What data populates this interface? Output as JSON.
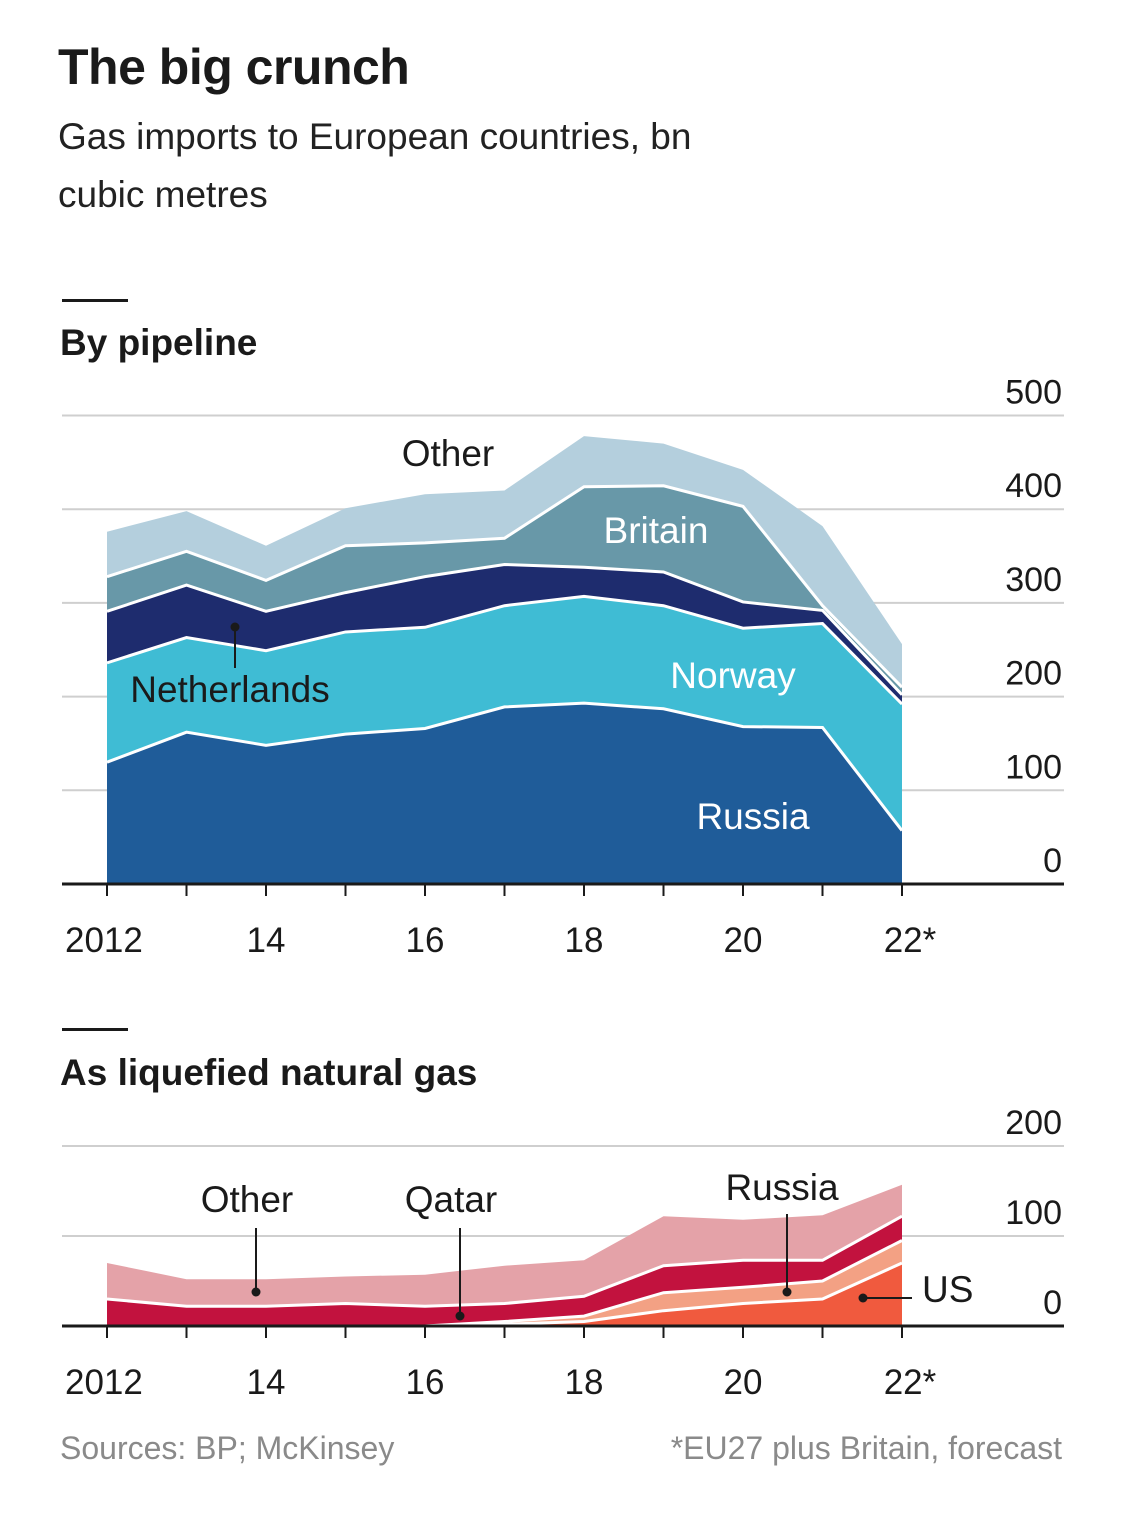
{
  "title": "The big crunch",
  "subtitle": "Gas imports to European countries, bn cubic metres",
  "source": "Sources: BP; McKinsey",
  "footnote": "*EU27 plus Britain, forecast",
  "colors": {
    "russia_pipe": "#1f5c99",
    "norway": "#3fbcd4",
    "netherlands": "#1e2c6e",
    "britain": "#6898a8",
    "other_pipe": "#b4cfdd",
    "us": "#f05a3e",
    "russia_lng": "#f3a184",
    "qatar": "#c2123e",
    "other_lng": "#e4a2a8",
    "grid": "#cfcfcf",
    "axis": "#1a1a1a"
  },
  "chart_data": [
    {
      "type": "area",
      "title": "By pipeline",
      "x": [
        2012,
        2013,
        2014,
        2015,
        2016,
        2017,
        2018,
        2019,
        2020,
        2021,
        2022
      ],
      "xticklabels": [
        "2012",
        "14",
        "16",
        "18",
        "20",
        "22*"
      ],
      "xtickvalues": [
        2012,
        2014,
        2016,
        2018,
        2020,
        2022
      ],
      "ylim": [
        0,
        500
      ],
      "yticks": [
        0,
        100,
        200,
        300,
        400,
        500
      ],
      "stacked": true,
      "series": [
        {
          "name": "Russia",
          "values": [
            130,
            162,
            148,
            160,
            166,
            189,
            193,
            187,
            168,
            167,
            57
          ],
          "color": "#1f5c99",
          "label_color": "#ffffff"
        },
        {
          "name": "Norway",
          "values": [
            106,
            101,
            101,
            109,
            108,
            108,
            114,
            110,
            105,
            111,
            135
          ],
          "color": "#3fbcd4",
          "label_color": "#ffffff"
        },
        {
          "name": "Netherlands",
          "values": [
            55,
            56,
            42,
            42,
            54,
            44,
            31,
            36,
            28,
            14,
            10
          ],
          "color": "#1e2c6e",
          "label_color": "#1a1a1a"
        },
        {
          "name": "Britain",
          "values": [
            37,
            36,
            33,
            50,
            36,
            28,
            86,
            92,
            102,
            5,
            8
          ],
          "color": "#6898a8",
          "label_color": "#ffffff"
        },
        {
          "name": "Other",
          "values": [
            48,
            43,
            37,
            40,
            52,
            51,
            54,
            45,
            39,
            85,
            46
          ],
          "color": "#b4cfdd",
          "label_color": "#1a1a1a"
        }
      ]
    },
    {
      "type": "area",
      "title": "As liquefied natural gas",
      "x": [
        2012,
        2013,
        2014,
        2015,
        2016,
        2017,
        2018,
        2019,
        2020,
        2021,
        2022
      ],
      "xticklabels": [
        "2012",
        "14",
        "16",
        "18",
        "20",
        "22*"
      ],
      "xtickvalues": [
        2012,
        2014,
        2016,
        2018,
        2020,
        2022
      ],
      "ylim": [
        0,
        200
      ],
      "yticks": [
        0,
        100,
        200
      ],
      "stacked": true,
      "series": [
        {
          "name": "US",
          "values": [
            0,
            0,
            0,
            0,
            0,
            2,
            5,
            17,
            25,
            30,
            70
          ]
        },
        {
          "name": "Russia",
          "values": [
            0,
            0,
            0,
            0,
            0,
            3,
            6,
            20,
            18,
            20,
            25
          ]
        },
        {
          "name": "Qatar",
          "values": [
            30,
            22,
            22,
            25,
            22,
            20,
            22,
            30,
            30,
            23,
            27
          ]
        },
        {
          "name": "Other",
          "values": [
            40,
            30,
            30,
            30,
            35,
            42,
            40,
            55,
            45,
            50,
            35
          ]
        }
      ]
    }
  ],
  "labels": {
    "pipe": {
      "other": "Other",
      "britain": "Britain",
      "netherlands": "Netherlands",
      "norway": "Norway",
      "russia": "Russia"
    },
    "lng": {
      "other": "Other",
      "qatar": "Qatar",
      "russia": "Russia",
      "us": "US"
    }
  }
}
